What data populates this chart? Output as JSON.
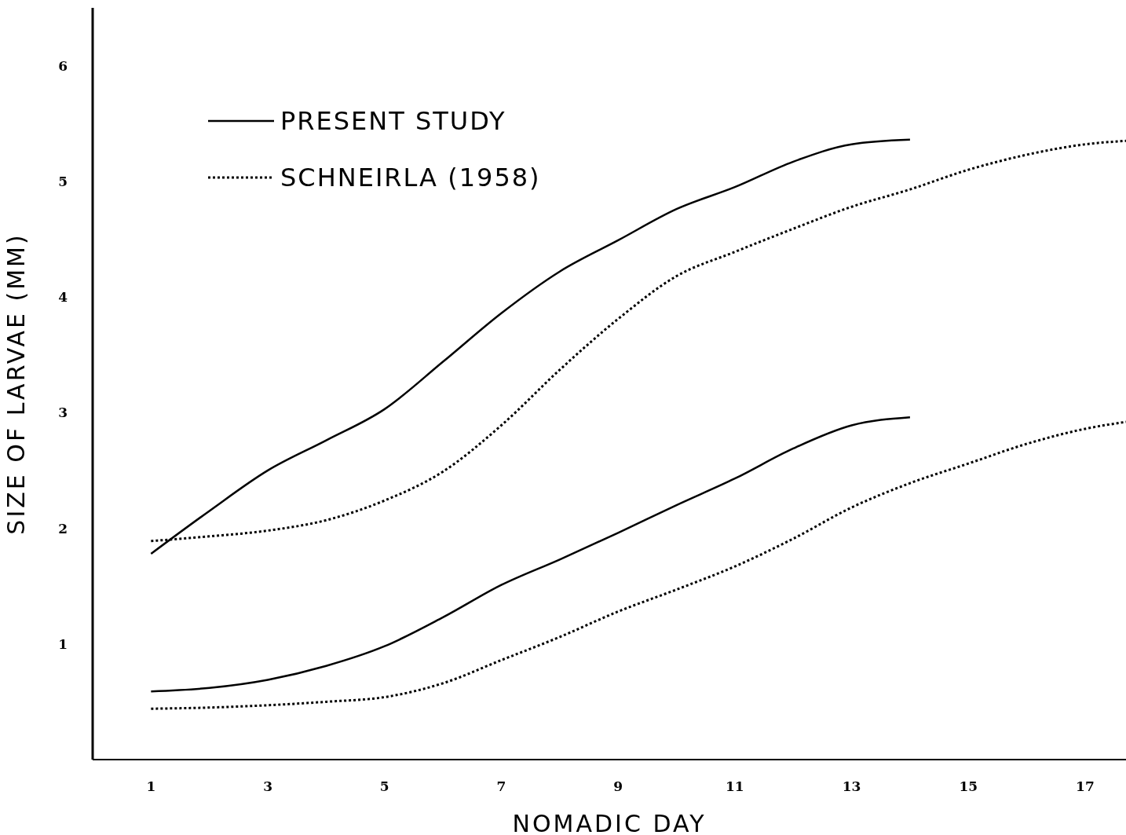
{
  "chart_data": {
    "type": "line",
    "xlabel": "NOMADIC DAY",
    "ylabel": "SIZE OF LARVAE (MM)",
    "xlim": [
      0,
      17.7
    ],
    "xticks": [
      1,
      3,
      5,
      7,
      9,
      11,
      13,
      15,
      17
    ],
    "ylim": [
      0,
      6.5
    ],
    "yticks": [
      1,
      2,
      3,
      4,
      5,
      6
    ],
    "grid": false,
    "legend": "top left",
    "marker": "none",
    "series": [
      {
        "name": "PRESENT STUDY",
        "color": "#000000",
        "line_style": "solid",
        "x": [
          1,
          2,
          3,
          4,
          5,
          6,
          7,
          8,
          9,
          10,
          11,
          12,
          13,
          14
        ],
        "values": [
          1.78,
          2.15,
          2.5,
          2.76,
          3.03,
          3.44,
          3.86,
          4.22,
          4.49,
          4.76,
          4.95,
          5.17,
          5.32,
          5.36
        ]
      },
      {
        "name": "SCHNEIRLA (1958)",
        "color": "#000000",
        "line_style": "dotted",
        "x": [
          1,
          2,
          3,
          4,
          5,
          6,
          7,
          8,
          9,
          10,
          11,
          12,
          13,
          14,
          15,
          16,
          17,
          17.7
        ],
        "values": [
          1.89,
          1.93,
          1.98,
          2.07,
          2.24,
          2.49,
          2.89,
          3.37,
          3.81,
          4.18,
          4.39,
          4.59,
          4.78,
          4.93,
          5.1,
          5.23,
          5.32,
          5.35
        ]
      },
      {
        "color": "#000000",
        "line_style": "solid",
        "x": [
          1,
          2,
          3,
          4,
          5,
          6,
          7,
          8,
          9,
          10,
          11,
          12,
          13,
          14
        ],
        "values": [
          0.59,
          0.62,
          0.69,
          0.81,
          0.98,
          1.23,
          1.51,
          1.73,
          1.96,
          2.2,
          2.43,
          2.69,
          2.89,
          2.96
        ]
      },
      {
        "color": "#000000",
        "line_style": "dotted",
        "x": [
          1,
          2,
          3,
          4,
          5,
          6,
          7,
          8,
          9,
          10,
          11,
          12,
          13,
          14,
          15,
          16,
          17,
          17.7
        ],
        "values": [
          0.44,
          0.45,
          0.47,
          0.5,
          0.54,
          0.66,
          0.86,
          1.06,
          1.28,
          1.47,
          1.67,
          1.91,
          2.18,
          2.39,
          2.56,
          2.73,
          2.86,
          2.92
        ]
      }
    ]
  }
}
